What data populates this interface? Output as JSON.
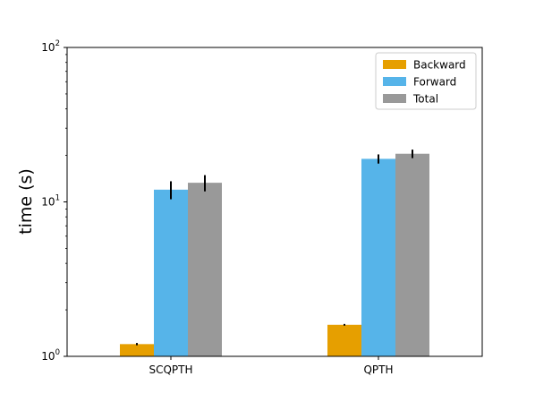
{
  "chart_data": {
    "type": "bar",
    "title": "",
    "xlabel": "",
    "ylabel": "time (s)",
    "yscale": "log",
    "ylim": [
      1,
      100
    ],
    "y_ticks": [
      {
        "base": "10",
        "exp": "0",
        "value": 1
      },
      {
        "base": "10",
        "exp": "1",
        "value": 10
      },
      {
        "base": "10",
        "exp": "2",
        "value": 100
      }
    ],
    "categories": [
      "SCQPTH",
      "QPTH"
    ],
    "series": [
      {
        "name": "Backward",
        "color": "#E69F00",
        "values": [
          1.2,
          1.6
        ],
        "errors": [
          0.02,
          0.02
        ]
      },
      {
        "name": "Forward",
        "color": "#56B4E9",
        "values": [
          12.0,
          19.0
        ],
        "errors": [
          1.6,
          1.3
        ]
      },
      {
        "name": "Total",
        "color": "#999999",
        "values": [
          13.3,
          20.5
        ],
        "errors": [
          1.6,
          1.3
        ]
      }
    ],
    "legend_position": "top-right",
    "grid": false
  }
}
